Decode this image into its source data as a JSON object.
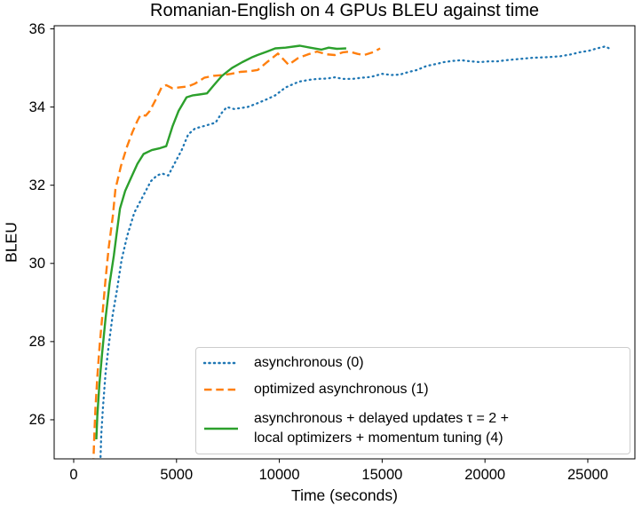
{
  "chart_data": {
    "type": "line",
    "title": "Romanian-English on 4 GPUs BLEU against time",
    "xlabel": "Time (seconds)",
    "ylabel": "BLEU",
    "xlim": [
      -950,
      27290
    ],
    "ylim": [
      25.0,
      36.08
    ],
    "xticks": [
      0,
      5000,
      10000,
      15000,
      20000,
      25000
    ],
    "yticks": [
      26,
      28,
      30,
      32,
      34,
      36
    ],
    "grid": false,
    "legend_position": "lower right",
    "axis_color": "#000000",
    "series": [
      {
        "name": "asynchronous (0)",
        "color": "#1f77b4",
        "style": "dotted",
        "points": [
          [
            1290,
            24.8
          ],
          [
            1340,
            25.6
          ],
          [
            1420,
            26.3
          ],
          [
            1550,
            27.2
          ],
          [
            1700,
            27.9
          ],
          [
            1900,
            28.7
          ],
          [
            2100,
            29.3
          ],
          [
            2330,
            30.1
          ],
          [
            2600,
            30.7
          ],
          [
            2950,
            31.3
          ],
          [
            3350,
            31.7
          ],
          [
            3750,
            32.1
          ],
          [
            4050,
            32.25
          ],
          [
            4300,
            32.3
          ],
          [
            4600,
            32.25
          ],
          [
            4950,
            32.6
          ],
          [
            5250,
            32.9
          ],
          [
            5570,
            33.3
          ],
          [
            5900,
            33.45
          ],
          [
            6250,
            33.5
          ],
          [
            6900,
            33.6
          ],
          [
            7200,
            33.85
          ],
          [
            7450,
            34.0
          ],
          [
            7800,
            33.95
          ],
          [
            8450,
            34.0
          ],
          [
            8950,
            34.1
          ],
          [
            9400,
            34.2
          ],
          [
            9800,
            34.3
          ],
          [
            10300,
            34.5
          ],
          [
            10950,
            34.65
          ],
          [
            11500,
            34.7
          ],
          [
            11850,
            34.72
          ],
          [
            12300,
            34.73
          ],
          [
            12700,
            34.76
          ],
          [
            13100,
            34.72
          ],
          [
            13550,
            34.72
          ],
          [
            14000,
            34.75
          ],
          [
            14450,
            34.77
          ],
          [
            15000,
            34.85
          ],
          [
            15450,
            34.82
          ],
          [
            15850,
            34.83
          ],
          [
            16300,
            34.9
          ],
          [
            16700,
            34.95
          ],
          [
            17150,
            35.05
          ],
          [
            17600,
            35.1
          ],
          [
            18000,
            35.15
          ],
          [
            18450,
            35.18
          ],
          [
            18850,
            35.2
          ],
          [
            19300,
            35.17
          ],
          [
            19750,
            35.15
          ],
          [
            20200,
            35.17
          ],
          [
            20600,
            35.17
          ],
          [
            21050,
            35.2
          ],
          [
            21450,
            35.22
          ],
          [
            21900,
            35.24
          ],
          [
            22300,
            35.26
          ],
          [
            22750,
            35.27
          ],
          [
            23200,
            35.28
          ],
          [
            23650,
            35.3
          ],
          [
            24200,
            35.35
          ],
          [
            24600,
            35.4
          ],
          [
            25050,
            35.44
          ],
          [
            25450,
            35.5
          ],
          [
            25850,
            35.55
          ],
          [
            26150,
            35.47
          ]
        ]
      },
      {
        "name": "optimized asynchronous (1)",
        "color": "#ff7f0e",
        "style": "dashed",
        "points": [
          [
            950,
            24.8
          ],
          [
            1000,
            25.6
          ],
          [
            1060,
            26.3
          ],
          [
            1150,
            27.1
          ],
          [
            1260,
            27.9
          ],
          [
            1400,
            28.7
          ],
          [
            1550,
            29.6
          ],
          [
            1700,
            30.4
          ],
          [
            1900,
            31.2
          ],
          [
            2030,
            31.9
          ],
          [
            2300,
            32.5
          ],
          [
            2600,
            33.0
          ],
          [
            2850,
            33.35
          ],
          [
            3100,
            33.65
          ],
          [
            3250,
            33.8
          ],
          [
            3500,
            33.78
          ],
          [
            3700,
            33.9
          ],
          [
            4000,
            34.2
          ],
          [
            4270,
            34.5
          ],
          [
            4500,
            34.56
          ],
          [
            4800,
            34.48
          ],
          [
            5100,
            34.5
          ],
          [
            5570,
            34.53
          ],
          [
            5900,
            34.6
          ],
          [
            6350,
            34.75
          ],
          [
            6800,
            34.8
          ],
          [
            7300,
            34.82
          ],
          [
            7650,
            34.85
          ],
          [
            8100,
            34.9
          ],
          [
            8600,
            34.92
          ],
          [
            8950,
            34.95
          ],
          [
            9400,
            35.15
          ],
          [
            9930,
            35.37
          ],
          [
            10450,
            35.08
          ],
          [
            10900,
            35.25
          ],
          [
            11400,
            35.35
          ],
          [
            11830,
            35.42
          ],
          [
            12300,
            35.35
          ],
          [
            12700,
            35.33
          ],
          [
            13100,
            35.4
          ],
          [
            13400,
            35.42
          ],
          [
            13800,
            35.36
          ],
          [
            14120,
            35.33
          ],
          [
            14550,
            35.4
          ],
          [
            14900,
            35.5
          ]
        ]
      },
      {
        "name": "asynchronous + delayed updates τ = 2 +\nlocal optimizers + momentum tuning (4)",
        "color": "#2ca02c",
        "style": "solid",
        "points": [
          [
            1100,
            25.5
          ],
          [
            1150,
            26.1
          ],
          [
            1250,
            26.9
          ],
          [
            1380,
            27.7
          ],
          [
            1550,
            28.6
          ],
          [
            1750,
            29.5
          ],
          [
            1950,
            30.2
          ],
          [
            2100,
            30.8
          ],
          [
            2250,
            31.4
          ],
          [
            2500,
            31.85
          ],
          [
            2800,
            32.2
          ],
          [
            3100,
            32.55
          ],
          [
            3400,
            32.8
          ],
          [
            3800,
            32.9
          ],
          [
            4200,
            32.95
          ],
          [
            4500,
            33.0
          ],
          [
            4800,
            33.5
          ],
          [
            5100,
            33.9
          ],
          [
            5490,
            34.25
          ],
          [
            5800,
            34.3
          ],
          [
            6100,
            34.32
          ],
          [
            6480,
            34.35
          ],
          [
            6800,
            34.55
          ],
          [
            7210,
            34.8
          ],
          [
            7700,
            35.0
          ],
          [
            8200,
            35.15
          ],
          [
            8700,
            35.28
          ],
          [
            8940,
            35.33
          ],
          [
            9400,
            35.42
          ],
          [
            9800,
            35.5
          ],
          [
            10300,
            35.52
          ],
          [
            11000,
            35.57
          ],
          [
            11500,
            35.52
          ],
          [
            12050,
            35.47
          ],
          [
            12400,
            35.52
          ],
          [
            12800,
            35.49
          ],
          [
            13250,
            35.5
          ]
        ]
      }
    ]
  }
}
